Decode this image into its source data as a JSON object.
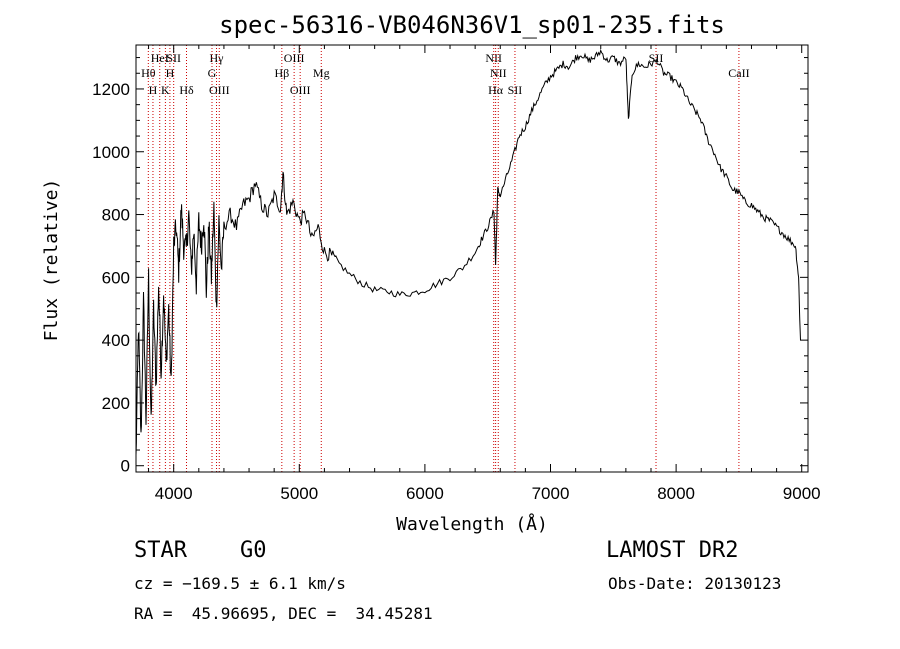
{
  "chart_data": {
    "type": "line",
    "title": "spec-56316-VB046N36V1_sp01-235.fits",
    "xlabel": "Wavelength (Å)",
    "ylabel": "Flux (relative)",
    "xlim": [
      3700,
      9050
    ],
    "ylim": [
      -20,
      1340
    ],
    "xticks": [
      4000,
      5000,
      6000,
      7000,
      8000,
      9000
    ],
    "yticks": [
      0,
      200,
      400,
      600,
      800,
      1000,
      1200
    ],
    "grid": false,
    "line_color": "#000000",
    "marker_color": "#cc0000",
    "spectrum": {
      "x": [
        3700,
        3720,
        3740,
        3760,
        3780,
        3800,
        3820,
        3840,
        3860,
        3880,
        3900,
        3920,
        3940,
        3960,
        3980,
        4000,
        4020,
        4040,
        4060,
        4080,
        4100,
        4120,
        4140,
        4160,
        4180,
        4200,
        4220,
        4240,
        4260,
        4280,
        4300,
        4320,
        4340,
        4360,
        4380,
        4400,
        4450,
        4500,
        4550,
        4600,
        4650,
        4700,
        4750,
        4800,
        4850,
        4870,
        4900,
        4950,
        5000,
        5050,
        5100,
        5150,
        5200,
        5250,
        5300,
        5400,
        5500,
        5600,
        5700,
        5800,
        5900,
        6000,
        6100,
        6200,
        6300,
        6400,
        6450,
        6500,
        6550,
        6563,
        6580,
        6600,
        6650,
        6700,
        6750,
        6800,
        6850,
        6900,
        6950,
        7000,
        7050,
        7100,
        7150,
        7200,
        7250,
        7300,
        7350,
        7400,
        7450,
        7500,
        7550,
        7600,
        7620,
        7650,
        7700,
        7750,
        7800,
        7850,
        7900,
        7950,
        8000,
        8050,
        8100,
        8150,
        8200,
        8250,
        8300,
        8350,
        8400,
        8450,
        8500,
        8550,
        8600,
        8650,
        8700,
        8750,
        8800,
        8850,
        8900,
        8950,
        8975,
        8990
      ],
      "y": [
        20,
        450,
        80,
        520,
        150,
        600,
        120,
        500,
        250,
        580,
        300,
        550,
        320,
        500,
        250,
        700,
        760,
        620,
        820,
        700,
        690,
        800,
        620,
        750,
        580,
        780,
        700,
        800,
        560,
        760,
        600,
        820,
        500,
        780,
        620,
        760,
        800,
        760,
        830,
        850,
        900,
        830,
        800,
        860,
        820,
        930,
        800,
        840,
        780,
        800,
        720,
        760,
        680,
        670,
        650,
        610,
        580,
        560,
        555,
        545,
        550,
        560,
        580,
        600,
        630,
        680,
        720,
        760,
        810,
        640,
        880,
        860,
        920,
        980,
        1050,
        1080,
        1130,
        1170,
        1210,
        1240,
        1260,
        1280,
        1270,
        1300,
        1310,
        1290,
        1300,
        1320,
        1290,
        1300,
        1280,
        1300,
        1100,
        1250,
        1280,
        1270,
        1280,
        1290,
        1250,
        1240,
        1220,
        1200,
        1160,
        1130,
        1100,
        1040,
        1000,
        950,
        920,
        880,
        870,
        840,
        830,
        810,
        790,
        780,
        760,
        740,
        720,
        700,
        600,
        400
      ]
    },
    "lines": [
      {
        "label": "Hθ",
        "x": 3798,
        "row": 2
      },
      {
        "label": "H",
        "x": 3835,
        "row": 3
      },
      {
        "label": "HeI",
        "x": 3889,
        "row": 1
      },
      {
        "label": "K",
        "x": 3934,
        "row": 3
      },
      {
        "label": "H",
        "x": 3970,
        "row": 2
      },
      {
        "label": "SII",
        "x": 4000,
        "row": 1
      },
      {
        "label": "Hδ",
        "x": 4102,
        "row": 3
      },
      {
        "label": "Hγ",
        "x": 4341,
        "row": 1
      },
      {
        "label": "G",
        "x": 4305,
        "row": 2
      },
      {
        "label": "OIII",
        "x": 4363,
        "row": 3
      },
      {
        "label": "Hβ",
        "x": 4861,
        "row": 2
      },
      {
        "label": "OIII",
        "x": 4959,
        "row": 1
      },
      {
        "label": "OIII",
        "x": 5007,
        "row": 3
      },
      {
        "label": "Mg",
        "x": 5175,
        "row": 2
      },
      {
        "label": "NII",
        "x": 6548,
        "row": 1
      },
      {
        "label": "NII",
        "x": 6584,
        "row": 2
      },
      {
        "label": "Hα",
        "x": 6563,
        "row": 3
      },
      {
        "label": "SII",
        "x": 6717,
        "row": 3
      },
      {
        "label": "SII",
        "x": 7840,
        "row": 1
      },
      {
        "label": "CaII",
        "x": 8500,
        "row": 2
      }
    ]
  },
  "info": {
    "object_type": "STAR",
    "subclass": "G0",
    "survey": "LAMOST DR2",
    "redshift_line": "cz = −169.5 ± 6.1 km/s",
    "obs_date_line": "Obs-Date: 20130123",
    "coords_line": "RA =  45.96695, DEC =  34.45281"
  }
}
